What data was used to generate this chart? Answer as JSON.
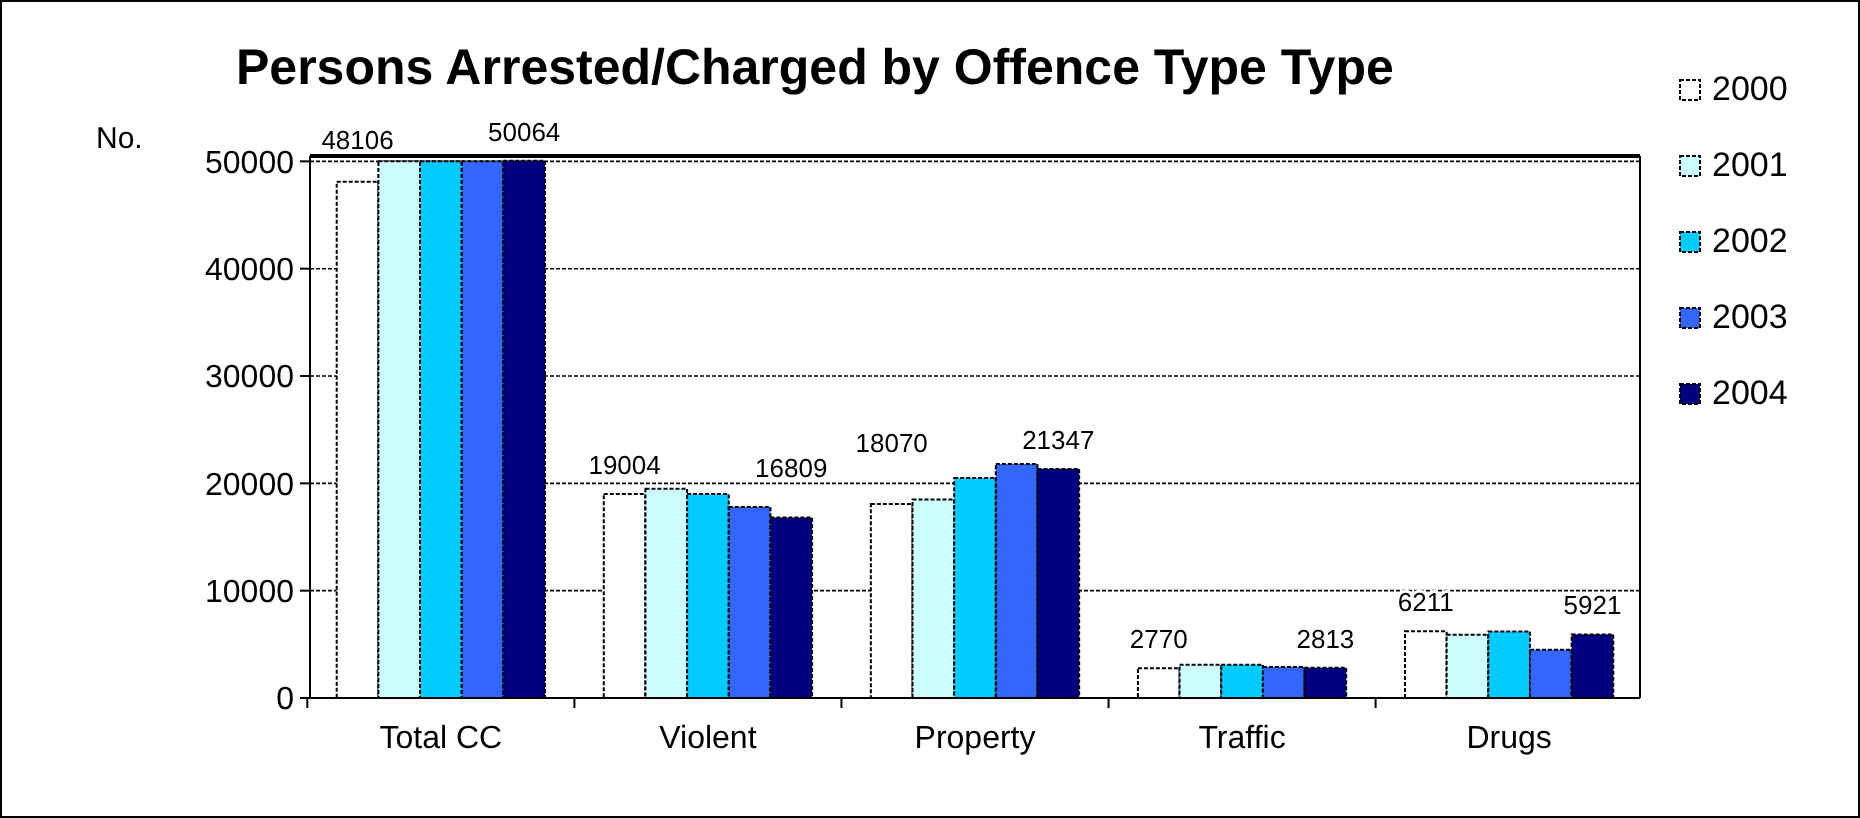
{
  "chart_data": {
    "type": "bar",
    "title": "Persons Arrested/Charged by Offence Type Type",
    "ylabel": "No.",
    "categories": [
      "Total CC",
      "Violent",
      "Property",
      "Traffic",
      "Drugs"
    ],
    "series": [
      {
        "name": "2000",
        "color": "#ffffff",
        "values": [
          48106,
          19004,
          18070,
          2770,
          6211
        ],
        "value_labels": [
          "48106",
          "19004",
          "18070",
          "2770",
          "6211"
        ]
      },
      {
        "name": "2001",
        "color": "#ccffff",
        "values": [
          50000,
          19500,
          18500,
          3100,
          5900
        ]
      },
      {
        "name": "2002",
        "color": "#00ccff",
        "values": [
          50000,
          19000,
          20500,
          3100,
          6200
        ]
      },
      {
        "name": "2003",
        "color": "#3366ff",
        "values": [
          50000,
          17800,
          21800,
          2900,
          4500
        ]
      },
      {
        "name": "2004",
        "color": "#000080",
        "values": [
          50064,
          16809,
          21347,
          2813,
          5921
        ],
        "value_labels": [
          "50064",
          "16809",
          "21347",
          "2813",
          "5921"
        ]
      }
    ],
    "ylim": [
      0,
      50500
    ],
    "yticks": [
      0,
      10000,
      20000,
      30000,
      40000,
      50000
    ],
    "grid": "y",
    "legend": "right"
  }
}
